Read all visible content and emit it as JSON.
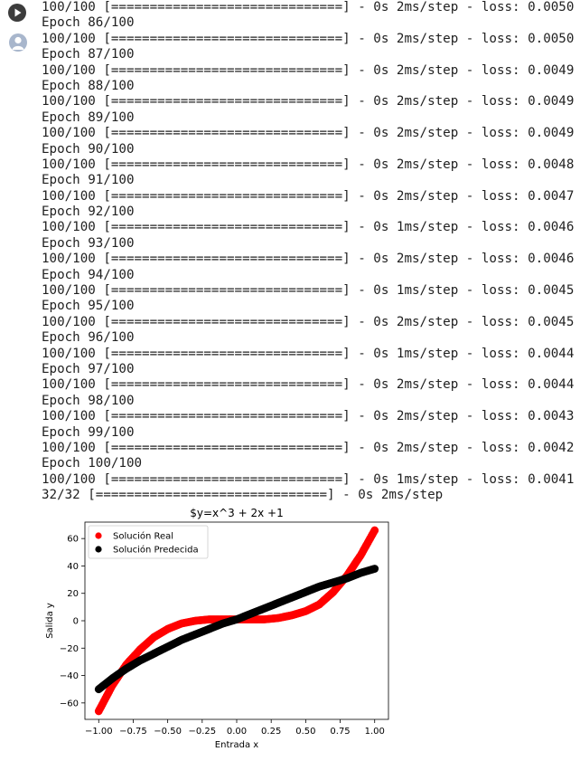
{
  "cell": {
    "run_button_label": "run-cell",
    "log_lines": [
      "100/100 [==============================] - 0s 2ms/step - loss: 0.0050",
      "Epoch 86/100",
      "100/100 [==============================] - 0s 2ms/step - loss: 0.0050",
      "Epoch 87/100",
      "100/100 [==============================] - 0s 2ms/step - loss: 0.0049",
      "Epoch 88/100",
      "100/100 [==============================] - 0s 2ms/step - loss: 0.0049",
      "Epoch 89/100",
      "100/100 [==============================] - 0s 2ms/step - loss: 0.0049",
      "Epoch 90/100",
      "100/100 [==============================] - 0s 2ms/step - loss: 0.0048",
      "Epoch 91/100",
      "100/100 [==============================] - 0s 2ms/step - loss: 0.0047",
      "Epoch 92/100",
      "100/100 [==============================] - 0s 1ms/step - loss: 0.0046",
      "Epoch 93/100",
      "100/100 [==============================] - 0s 2ms/step - loss: 0.0046",
      "Epoch 94/100",
      "100/100 [==============================] - 0s 1ms/step - loss: 0.0045",
      "Epoch 95/100",
      "100/100 [==============================] - 0s 2ms/step - loss: 0.0045",
      "Epoch 96/100",
      "100/100 [==============================] - 0s 1ms/step - loss: 0.0044",
      "Epoch 97/100",
      "100/100 [==============================] - 0s 2ms/step - loss: 0.0044",
      "Epoch 98/100",
      "100/100 [==============================] - 0s 2ms/step - loss: 0.0043",
      "Epoch 99/100",
      "100/100 [==============================] - 0s 2ms/step - loss: 0.0042",
      "Epoch 100/100",
      "100/100 [==============================] - 0s 1ms/step - loss: 0.0041",
      "32/32 [==============================] - 0s 2ms/step"
    ]
  },
  "chart_data": {
    "type": "scatter",
    "title": "$y=x^3 + 2x +1",
    "xlabel": "Entrada x",
    "ylabel": "Salida y",
    "xlim": [
      -1.1,
      1.1
    ],
    "ylim": [
      -72,
      72
    ],
    "xticks": [
      -1.0,
      -0.75,
      -0.5,
      -0.25,
      0.0,
      0.25,
      0.5,
      0.75,
      1.0
    ],
    "xtick_labels": [
      "−1.00",
      "−0.75",
      "−0.50",
      "−0.25",
      "0.00",
      "0.25",
      "0.50",
      "0.75",
      "1.00"
    ],
    "yticks": [
      -60,
      -40,
      -20,
      0,
      20,
      40,
      60
    ],
    "ytick_labels": [
      "−60",
      "−40",
      "−20",
      "0",
      "20",
      "40",
      "60"
    ],
    "grid": false,
    "legend_position": "top-left",
    "series": [
      {
        "name": "Solución Real",
        "color": "#ff0000",
        "x": [
          -1.0,
          -0.9,
          -0.8,
          -0.7,
          -0.6,
          -0.5,
          -0.4,
          -0.3,
          -0.2,
          -0.1,
          0.0,
          0.1,
          0.2,
          0.3,
          0.4,
          0.5,
          0.6,
          0.7,
          0.8,
          0.9,
          1.0
        ],
        "y": [
          -66,
          -47,
          -32,
          -21,
          -12,
          -6,
          -2,
          0,
          1,
          1,
          1,
          1,
          1,
          2,
          4,
          7,
          12,
          21,
          33,
          48,
          66
        ]
      },
      {
        "name": "Solución Predecida",
        "color": "#000000",
        "x": [
          -1.0,
          -0.9,
          -0.8,
          -0.7,
          -0.6,
          -0.5,
          -0.4,
          -0.3,
          -0.2,
          -0.1,
          0.0,
          0.1,
          0.2,
          0.3,
          0.4,
          0.5,
          0.6,
          0.7,
          0.8,
          0.9,
          1.0
        ],
        "y": [
          -50,
          -42,
          -35,
          -29,
          -24,
          -19,
          -14,
          -10,
          -6,
          -2,
          1,
          5,
          9,
          13,
          17,
          21,
          25,
          28,
          31,
          35,
          38
        ]
      }
    ]
  }
}
